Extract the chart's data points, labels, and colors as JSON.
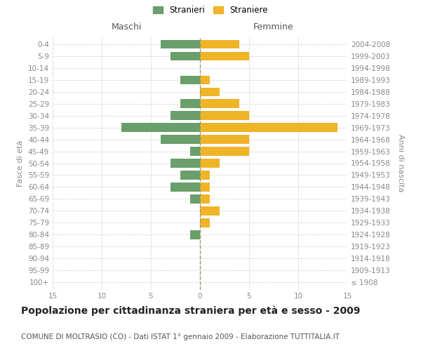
{
  "age_groups": [
    "100+",
    "95-99",
    "90-94",
    "85-89",
    "80-84",
    "75-79",
    "70-74",
    "65-69",
    "60-64",
    "55-59",
    "50-54",
    "45-49",
    "40-44",
    "35-39",
    "30-34",
    "25-29",
    "20-24",
    "15-19",
    "10-14",
    "5-9",
    "0-4"
  ],
  "birth_years": [
    "≤ 1908",
    "1909-1913",
    "1914-1918",
    "1919-1923",
    "1924-1928",
    "1929-1933",
    "1934-1938",
    "1939-1943",
    "1944-1948",
    "1949-1953",
    "1954-1958",
    "1959-1963",
    "1964-1968",
    "1969-1973",
    "1974-1978",
    "1979-1983",
    "1984-1988",
    "1989-1993",
    "1994-1998",
    "1999-2003",
    "2004-2008"
  ],
  "stranieri": [
    0,
    0,
    0,
    0,
    1,
    0,
    0,
    1,
    3,
    2,
    3,
    1,
    4,
    8,
    3,
    2,
    0,
    2,
    0,
    3,
    4
  ],
  "straniere": [
    0,
    0,
    0,
    0,
    0,
    1,
    2,
    1,
    1,
    1,
    2,
    5,
    5,
    14,
    5,
    4,
    2,
    1,
    0,
    5,
    4
  ],
  "stranieri_color": "#6a9e6a",
  "straniere_color": "#f0b429",
  "xlim": [
    -15,
    15
  ],
  "xticks": [
    -15,
    -10,
    -5,
    0,
    5,
    10,
    15
  ],
  "xticklabels": [
    "15",
    "10",
    "5",
    "0",
    "5",
    "10",
    "15"
  ],
  "title": "Popolazione per cittadinanza straniera per età e sesso - 2009",
  "subtitle": "COMUNE DI MOLTRASIO (CO) - Dati ISTAT 1° gennaio 2009 - Elaborazione TUTTITALIA.IT",
  "ylabel_left": "Fasce di età",
  "ylabel_right": "Anni di nascita",
  "maschi_label": "Maschi",
  "femmine_label": "Femmine",
  "legend_stranieri": "Stranieri",
  "legend_straniere": "Straniere",
  "bar_height": 0.72,
  "bg_color": "#ffffff",
  "grid_color": "#cccccc",
  "text_color": "#888888",
  "axis_label_color": "#555555",
  "dashed_line_color": "#999966",
  "title_fontsize": 10,
  "subtitle_fontsize": 7.5,
  "tick_fontsize": 7.5,
  "header_fontsize": 9,
  "legend_fontsize": 8.5
}
